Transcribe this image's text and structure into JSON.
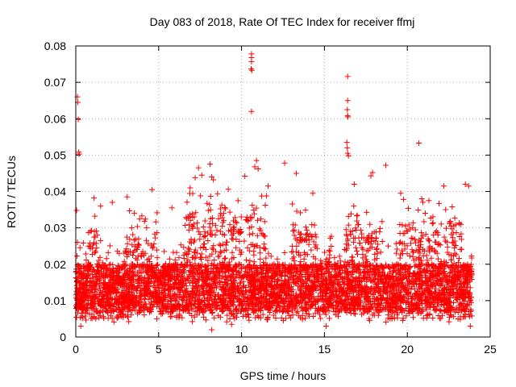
{
  "chart_data": {
    "type": "scatter",
    "title": "Day 083 of 2018, Rate Of TEC Index for receiver ffmj",
    "xlabel": "GPS time / hours",
    "ylabel": "ROTI / TECUs",
    "xlim": [
      0,
      25
    ],
    "ylim": [
      0,
      0.08
    ],
    "xticks": [
      0,
      5,
      10,
      15,
      20,
      25
    ],
    "yticks": [
      0,
      0.01,
      0.02,
      0.03,
      0.04,
      0.05,
      0.06,
      0.07,
      0.08
    ],
    "xtick_labels": [
      "0",
      "5",
      "10",
      "15",
      "20",
      "25"
    ],
    "ytick_labels": [
      "0",
      "0.01",
      "0.02",
      "0.03",
      "0.04",
      "0.05",
      "0.06",
      "0.07",
      "0.08"
    ],
    "grid": true,
    "marker": "+",
    "color": "#ff0000",
    "data_x_range": [
      0,
      23.9
    ],
    "series": [
      {
        "name": "ROTI",
        "points": [
          [
            0.05,
            0.0348
          ],
          [
            0.1,
            0.066
          ],
          [
            0.12,
            0.0645
          ],
          [
            0.15,
            0.0598
          ],
          [
            0.18,
            0.0508
          ],
          [
            0.2,
            0.0503
          ],
          [
            10.6,
            0.0778
          ],
          [
            10.6,
            0.0768
          ],
          [
            10.6,
            0.0757
          ],
          [
            10.58,
            0.0737
          ],
          [
            10.62,
            0.0733
          ],
          [
            10.6,
            0.062
          ],
          [
            16.4,
            0.0716
          ],
          [
            16.4,
            0.065
          ],
          [
            16.38,
            0.0625
          ],
          [
            16.4,
            0.0608
          ],
          [
            16.42,
            0.0605
          ],
          [
            16.35,
            0.0535
          ],
          [
            16.38,
            0.052
          ],
          [
            16.4,
            0.0505
          ],
          [
            16.45,
            0.0498
          ],
          [
            20.7,
            0.0533
          ],
          [
            8.1,
            0.0475
          ],
          [
            7.4,
            0.0465
          ],
          [
            7.6,
            0.0445
          ],
          [
            12.6,
            0.0478
          ],
          [
            13.3,
            0.045
          ],
          [
            10.9,
            0.0485
          ],
          [
            10.8,
            0.0468
          ],
          [
            11.0,
            0.0462
          ],
          [
            10.2,
            0.0442
          ],
          [
            18.7,
            0.0472
          ],
          [
            17.8,
            0.0443
          ],
          [
            17.9,
            0.0452
          ],
          [
            8.2,
            0.044
          ],
          [
            8.3,
            0.0432
          ],
          [
            7.2,
            0.0438
          ],
          [
            23.5,
            0.042
          ],
          [
            23.7,
            0.0415
          ],
          [
            16.8,
            0.042
          ],
          [
            22.2,
            0.0415
          ],
          [
            4.6,
            0.0405
          ],
          [
            6.9,
            0.041
          ],
          [
            11.6,
            0.0415
          ],
          [
            9.2,
            0.0406
          ],
          [
            14.3,
            0.0395
          ],
          [
            3.1,
            0.0385
          ],
          [
            1.1,
            0.0382
          ],
          [
            19.6,
            0.0395
          ],
          [
            2.2,
            0.037
          ],
          [
            5.8,
            0.0355
          ],
          [
            21.3,
            0.0375
          ],
          [
            0.1,
            0.026
          ],
          [
            0.3,
            0.003
          ],
          [
            9.4,
            0.0035
          ],
          [
            23.8,
            0.003
          ],
          [
            15.1,
            0.003
          ],
          [
            8.2,
            0.002
          ]
        ]
      }
    ]
  }
}
